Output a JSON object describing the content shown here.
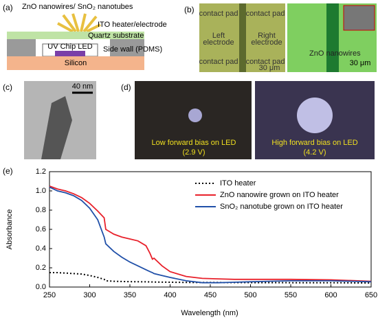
{
  "panels": {
    "a": {
      "letter": "(a)",
      "top_label": "ZnO nanowires/ SnO₂ nanotubes",
      "ito": "ITO heater/electrode",
      "quartz": "Quartz substrate",
      "led": "UV Chip LED",
      "wall": "Side wall (PDMS)",
      "silicon": "Silicon"
    },
    "b": {
      "letter": "(b)",
      "pads": [
        "contact pad",
        "contact pad",
        "contact pad",
        "contact pad"
      ],
      "left": [
        "Left",
        "electrode"
      ],
      "right": [
        "Right",
        "electrode"
      ],
      "scale1": "30 μm",
      "nanowires": "ZnO nanowires",
      "scale2": "30 μm"
    },
    "c": {
      "letter": "(c)",
      "scale": "40 nm"
    },
    "d": {
      "letter": "(d)",
      "low": [
        "Low forward bias on LED",
        "(2.9 V)"
      ],
      "high": [
        "High forward bias on LED",
        "(4.2 V)"
      ]
    },
    "e": {
      "letter": "(e)"
    }
  },
  "chart_data": {
    "type": "line",
    "x_label": "Wavelength (nm)",
    "y_label": "Absorbance",
    "x": [
      250,
      260,
      270,
      280,
      290,
      300,
      310,
      318,
      320,
      330,
      340,
      350,
      360,
      370,
      375,
      378,
      380,
      390,
      400,
      420,
      440,
      460,
      480,
      500,
      550,
      600,
      650
    ],
    "series": [
      {
        "name": "ITO heater",
        "color": "#000000",
        "dash": "dotted",
        "values": [
          0.15,
          0.15,
          0.145,
          0.14,
          0.135,
          0.12,
          0.1,
          0.08,
          0.065,
          0.06,
          0.058,
          0.056,
          0.055,
          0.054,
          0.053,
          0.053,
          0.052,
          0.051,
          0.05,
          0.048,
          0.047,
          0.047,
          0.046,
          0.046,
          0.045,
          0.045,
          0.042
        ]
      },
      {
        "name": "ZnO nanowire grown on ITO heater",
        "color": "#e8202a",
        "dash": "solid",
        "values": [
          1.05,
          1.02,
          1.0,
          0.97,
          0.93,
          0.87,
          0.79,
          0.72,
          0.6,
          0.55,
          0.52,
          0.5,
          0.48,
          0.43,
          0.35,
          0.29,
          0.3,
          0.22,
          0.16,
          0.11,
          0.09,
          0.085,
          0.08,
          0.08,
          0.08,
          0.075,
          0.06
        ]
      },
      {
        "name": "SnO₂ nanotube grown on ITO heater",
        "color": "#1f4fa8",
        "dash": "solid",
        "values": [
          1.04,
          1.0,
          0.98,
          0.95,
          0.9,
          0.82,
          0.7,
          0.52,
          0.45,
          0.37,
          0.31,
          0.26,
          0.22,
          0.18,
          0.16,
          0.15,
          0.14,
          0.12,
          0.1,
          0.065,
          0.045,
          0.045,
          0.05,
          0.055,
          0.065,
          0.065,
          0.055
        ]
      }
    ],
    "xlim": [
      250,
      650
    ],
    "xticks": [
      250,
      300,
      350,
      400,
      450,
      500,
      550,
      600,
      650
    ],
    "ylim": [
      0,
      1.2
    ],
    "yticks": [
      {
        "value": 0,
        "label": "0.0"
      },
      0.2,
      0.4,
      0.6,
      0.8,
      {
        "value": 1,
        "label": "1.0"
      },
      1.2
    ]
  }
}
